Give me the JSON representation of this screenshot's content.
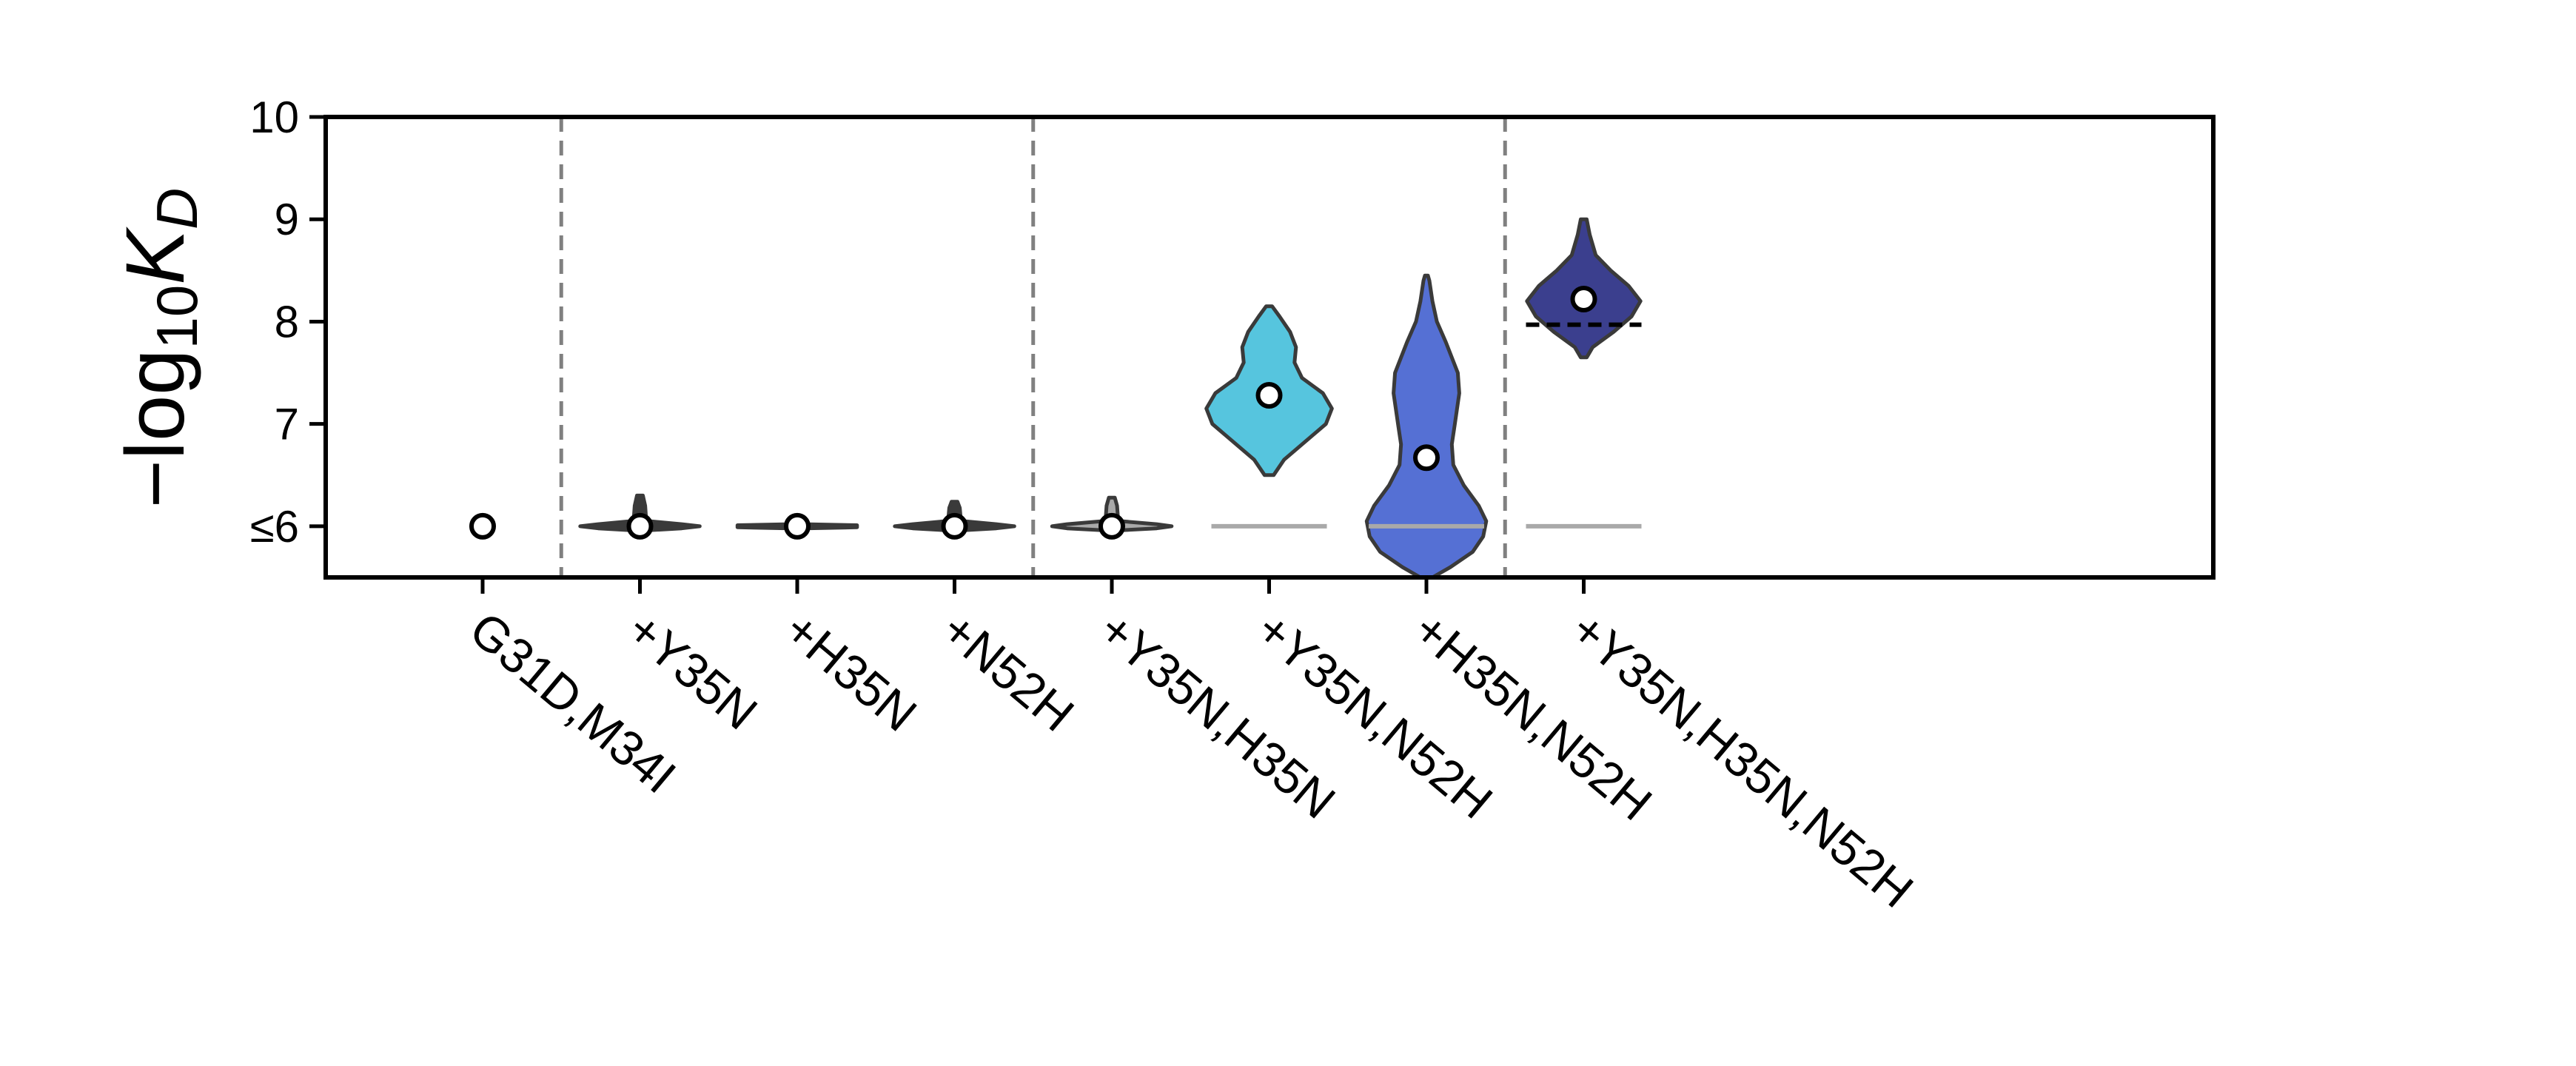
{
  "chart_data": {
    "type": "violin",
    "ylabel": "−log₁₀K_D",
    "ylim": [
      5.5,
      10
    ],
    "y_ticks": [
      {
        "value": 6,
        "label": "≤6"
      },
      {
        "value": 7,
        "label": "7"
      },
      {
        "value": 8,
        "label": "8"
      },
      {
        "value": 9,
        "label": "9"
      },
      {
        "value": 10,
        "label": "10"
      }
    ],
    "group_separators_after_category_index": [
      0,
      3,
      6
    ],
    "grid": false,
    "legend": "none",
    "colors": {
      "dark_gray": "#3a3a3a",
      "light_gray": "#a9a9a9",
      "cyan": "#56c5de",
      "blue": "#5570d4",
      "navy": "#3b3f8e",
      "separator": "#808080"
    },
    "categories": [
      {
        "label": "G31D,M34I",
        "marker": 6.0,
        "violin": null,
        "baseline": false,
        "dashed_line": null
      },
      {
        "label": "+Y35N",
        "marker": 6.0,
        "baseline": false,
        "dashed_line": null,
        "violin": {
          "color": "dark_gray",
          "profile": [
            [
              5.96,
              0.05
            ],
            [
              5.98,
              0.28
            ],
            [
              6.0,
              0.4
            ],
            [
              6.02,
              0.28
            ],
            [
              6.05,
              0.06
            ],
            [
              6.1,
              0.04
            ],
            [
              6.2,
              0.035
            ],
            [
              6.3,
              0.02
            ]
          ]
        }
      },
      {
        "label": "+H35N",
        "marker": 6.0,
        "baseline": false,
        "dashed_line": null,
        "violin": {
          "color": "dark_gray",
          "profile": [
            [
              5.98,
              0.05
            ],
            [
              5.99,
              0.4
            ],
            [
              6.01,
              0.4
            ],
            [
              6.02,
              0.05
            ]
          ]
        }
      },
      {
        "label": "+N52H",
        "marker": 6.0,
        "baseline": false,
        "dashed_line": null,
        "violin": {
          "color": "dark_gray",
          "profile": [
            [
              5.96,
              0.05
            ],
            [
              5.98,
              0.28
            ],
            [
              6.0,
              0.4
            ],
            [
              6.02,
              0.28
            ],
            [
              6.05,
              0.06
            ],
            [
              6.1,
              0.04
            ],
            [
              6.18,
              0.035
            ],
            [
              6.24,
              0.02
            ]
          ]
        }
      },
      {
        "label": "+Y35N,H35N",
        "marker": 6.0,
        "baseline": false,
        "dashed_line": null,
        "violin": {
          "color": "light_gray",
          "profile": [
            [
              5.96,
              0.05
            ],
            [
              5.98,
              0.3
            ],
            [
              6.0,
              0.4
            ],
            [
              6.02,
              0.3
            ],
            [
              6.05,
              0.06
            ],
            [
              6.1,
              0.04
            ],
            [
              6.2,
              0.035
            ],
            [
              6.28,
              0.02
            ]
          ]
        }
      },
      {
        "label": "+Y35N,N52H",
        "marker": 7.28,
        "baseline": true,
        "dashed_line": null,
        "violin": {
          "color": "cyan",
          "profile": [
            [
              6.5,
              0.03
            ],
            [
              6.65,
              0.1
            ],
            [
              6.85,
              0.26
            ],
            [
              7.0,
              0.38
            ],
            [
              7.15,
              0.42
            ],
            [
              7.3,
              0.36
            ],
            [
              7.45,
              0.22
            ],
            [
              7.6,
              0.17
            ],
            [
              7.75,
              0.18
            ],
            [
              7.9,
              0.14
            ],
            [
              8.05,
              0.07
            ],
            [
              8.15,
              0.02
            ]
          ]
        }
      },
      {
        "label": "+H35N,N52H",
        "marker": 6.67,
        "baseline": true,
        "dashed_line": null,
        "violin": {
          "color": "blue",
          "profile": [
            [
              5.5,
              0.04
            ],
            [
              5.6,
              0.16
            ],
            [
              5.75,
              0.31
            ],
            [
              5.9,
              0.38
            ],
            [
              6.05,
              0.4
            ],
            [
              6.2,
              0.35
            ],
            [
              6.4,
              0.25
            ],
            [
              6.6,
              0.18
            ],
            [
              6.8,
              0.17
            ],
            [
              7.0,
              0.19
            ],
            [
              7.3,
              0.22
            ],
            [
              7.5,
              0.21
            ],
            [
              7.8,
              0.13
            ],
            [
              8.0,
              0.07
            ],
            [
              8.2,
              0.04
            ],
            [
              8.4,
              0.02
            ],
            [
              8.45,
              0.01
            ]
          ]
        }
      },
      {
        "label": "+Y35N,H35N,N52H",
        "marker": 8.22,
        "baseline": true,
        "dashed_line": 7.97,
        "violin": {
          "color": "navy",
          "profile": [
            [
              7.65,
              0.02
            ],
            [
              7.75,
              0.06
            ],
            [
              7.9,
              0.2
            ],
            [
              8.05,
              0.32
            ],
            [
              8.2,
              0.38
            ],
            [
              8.35,
              0.3
            ],
            [
              8.5,
              0.18
            ],
            [
              8.65,
              0.08
            ],
            [
              8.85,
              0.04
            ],
            [
              9.0,
              0.02
            ]
          ]
        }
      }
    ]
  }
}
